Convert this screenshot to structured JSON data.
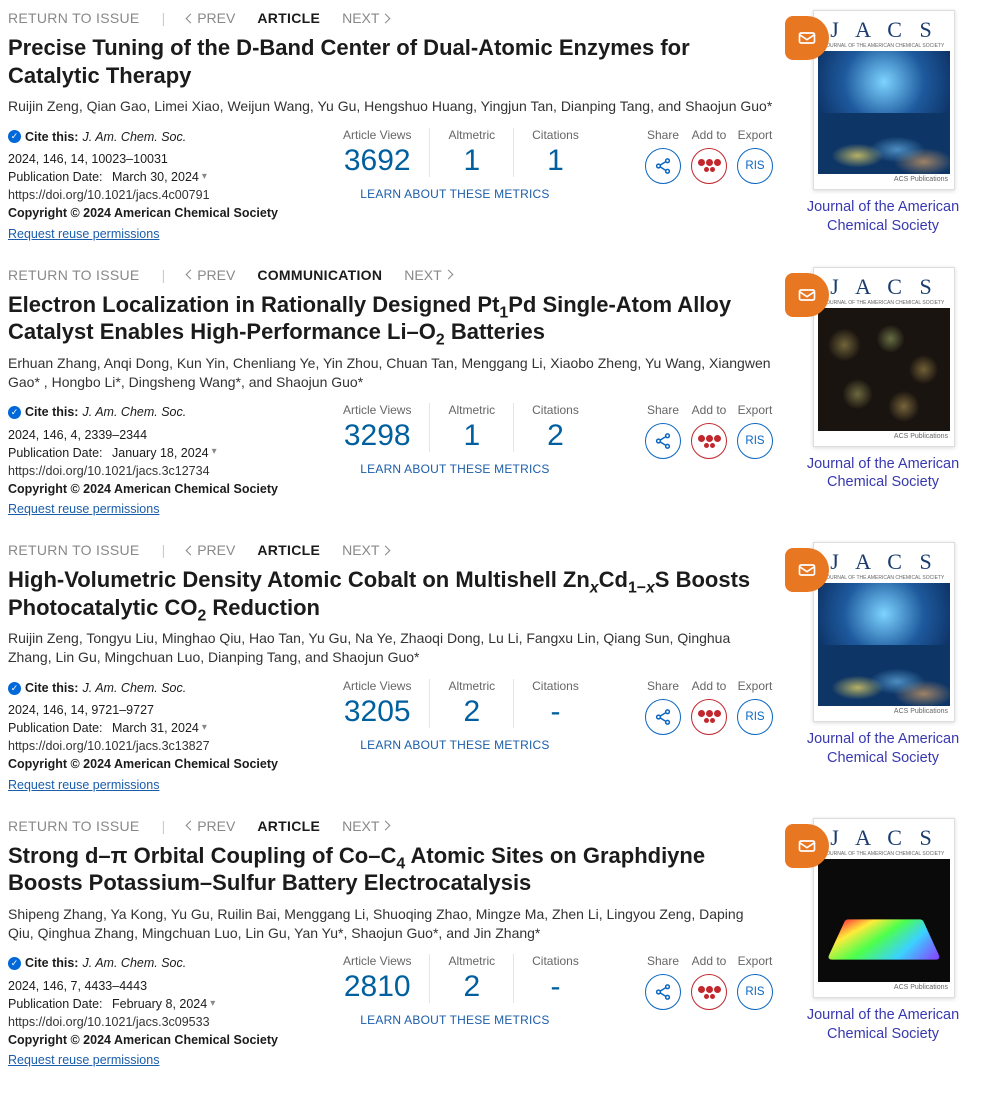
{
  "labels": {
    "return": "RETURN TO ISSUE",
    "prev": "PREV",
    "next": "NEXT",
    "cite": "Cite this:",
    "pubdate_prefix": "Publication Date:",
    "reuse": "Request reuse permissions",
    "views": "Article Views",
    "altmetric": "Altmetric",
    "citations": "Citations",
    "learn": "LEARN ABOUT THESE METRICS",
    "share": "Share",
    "addto": "Add to",
    "export": "Export",
    "ris": "RIS",
    "journal_link": "Journal of the American Chemical Society",
    "cover_title": "J A C S",
    "cover_sub": "JOURNAL OF THE AMERICAN CHEMICAL SOCIETY",
    "cover_foot": "ACS Publications"
  },
  "articles": [
    {
      "type": "ARTICLE",
      "title_html": "Precise Tuning of the D-Band Center of Dual-Atomic Enzymes for Catalytic Therapy",
      "authors": "Ruijin Zeng, Qian Gao, Limei Xiao, Weijun Wang, Yu Gu, Hengshuo Huang, Yingjun Tan, Dianping Tang, and Shaojun Guo*",
      "journal": "J. Am. Chem. Soc.",
      "citation": "2024, 146, 14, 10023–10031",
      "pubdate": "March 30, 2024",
      "doi": "https://doi.org/10.1021/jacs.4c00791",
      "copyright": "Copyright © 2024 American Chemical Society",
      "views": "3692",
      "altmetric": "1",
      "citations_n": "1",
      "cover": "blue"
    },
    {
      "type": "COMMUNICATION",
      "title_html": "Electron Localization in Rationally Designed Pt<sub>1</sub>Pd Single-Atom Alloy Catalyst Enables High-Performance Li–O<sub>2</sub> Batteries",
      "authors": "Erhuan Zhang, Anqi Dong, Kun Yin, Chenliang Ye, Yin Zhou, Chuan Tan, Menggang Li, Xiaobo Zheng, Yu Wang, Xiangwen Gao* , Hongbo Li*, Dingsheng Wang*, and Shaojun Guo*",
      "journal": "J. Am. Chem. Soc.",
      "citation": "2024, 146, 4, 2339–2344",
      "pubdate": "January 18, 2024",
      "doi": "https://doi.org/10.1021/jacs.3c12734",
      "copyright": "Copyright © 2024 American Chemical Society",
      "views": "3298",
      "altmetric": "1",
      "citations_n": "2",
      "cover": "dark"
    },
    {
      "type": "ARTICLE",
      "title_html": "High-Volumetric Density Atomic Cobalt on Multishell Zn<sub class=\"sub-it\">x</sub>Cd<sub>1−<span class=\"sub-it\">x</span></sub>S Boosts Photocatalytic CO<sub>2</sub> Reduction",
      "authors": "Ruijin Zeng, Tongyu Liu, Minghao Qiu, Hao Tan, Yu Gu, Na Ye, Zhaoqi Dong, Lu Li, Fangxu Lin, Qiang Sun, Qinghua Zhang, Lin Gu, Mingchuan Luo, Dianping Tang, and Shaojun Guo*",
      "journal": "J. Am. Chem. Soc.",
      "citation": "2024, 146, 14, 9721–9727",
      "pubdate": "March 31, 2024",
      "doi": "https://doi.org/10.1021/jacs.3c13827",
      "copyright": "Copyright © 2024 American Chemical Society",
      "views": "3205",
      "altmetric": "2",
      "citations_n": "-",
      "cover": "blue"
    },
    {
      "type": "ARTICLE",
      "title_html": "Strong d–π Orbital Coupling of Co–C<sub>4</sub> Atomic Sites on Graphdiyne Boosts Potassium–Sulfur Battery Electrocatalysis",
      "authors": "Shipeng Zhang, Ya Kong, Yu Gu, Ruilin Bai, Menggang Li, Shuoqing Zhao, Mingze Ma, Zhen Li, Lingyou Zeng, Daping Qiu, Qinghua Zhang, Mingchuan Luo, Lin Gu, Yan Yu*, Shaojun Guo*, and Jin Zhang*",
      "journal": "J. Am. Chem. Soc.",
      "citation": "2024, 146, 7, 4433–4443",
      "pubdate": "February 8, 2024",
      "doi": "https://doi.org/10.1021/jacs.3c09533",
      "copyright": "Copyright © 2024 American Chemical Society",
      "views": "2810",
      "altmetric": "2",
      "citations_n": "-",
      "cover": "rainbow"
    }
  ]
}
